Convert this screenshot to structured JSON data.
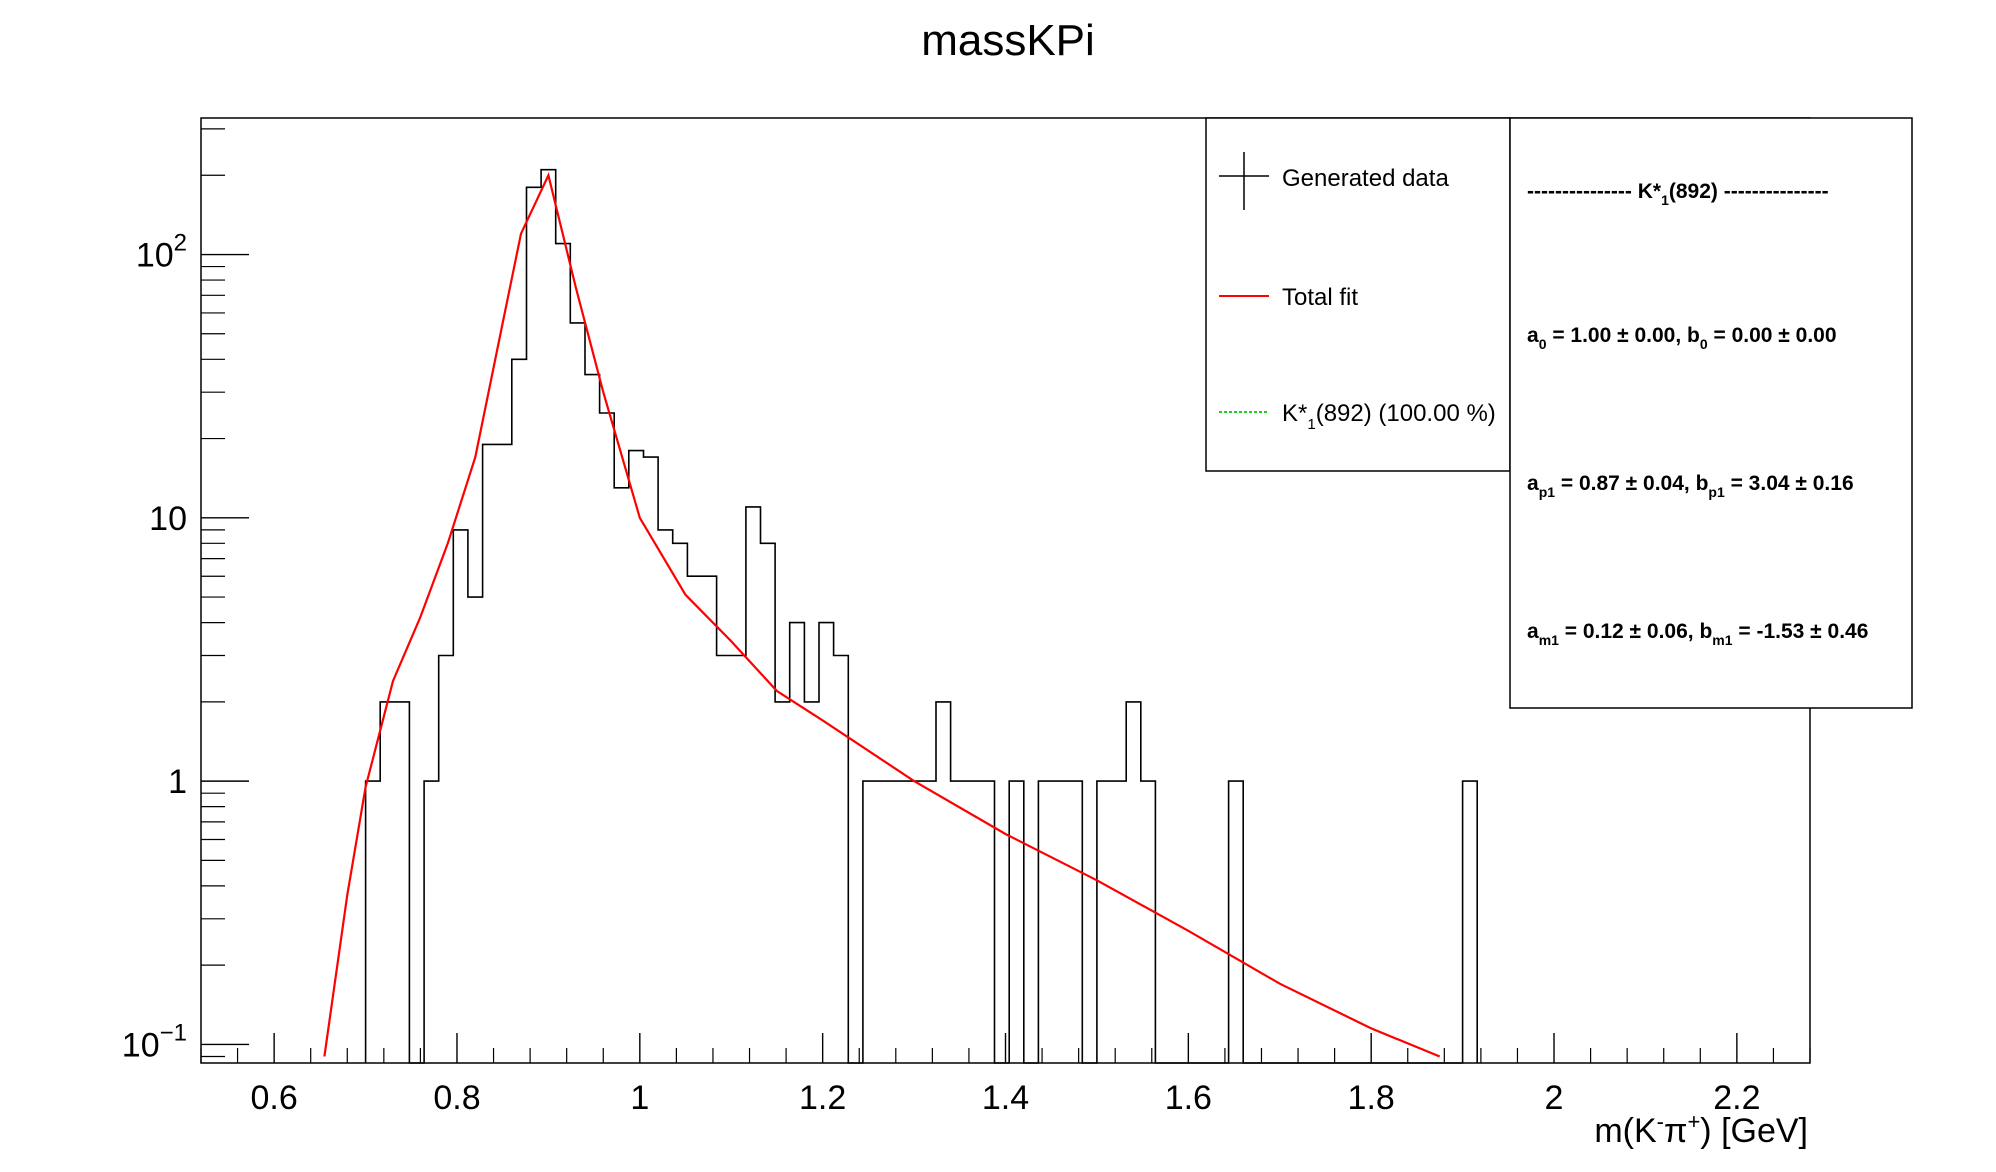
{
  "chart_data": {
    "type": "histogram",
    "title": "massKPi",
    "xlabel": "m(K⁻π⁺) [GeV]",
    "ylabel": "",
    "xlim": [
      0.52,
      2.28
    ],
    "ylim": [
      0.085,
      330
    ],
    "yscale": "log",
    "x_ticks": [
      {
        "value": 0.6,
        "label": "0.6"
      },
      {
        "value": 0.8,
        "label": "0.8"
      },
      {
        "value": 1.0,
        "label": "1"
      },
      {
        "value": 1.2,
        "label": "1.2"
      },
      {
        "value": 1.4,
        "label": "1.4"
      },
      {
        "value": 1.6,
        "label": "1.6"
      },
      {
        "value": 1.8,
        "label": "1.8"
      },
      {
        "value": 2.0,
        "label": "2"
      },
      {
        "value": 2.2,
        "label": "2.2"
      }
    ],
    "y_ticks": [
      {
        "value": 0.1,
        "base": "10",
        "exp": "−1"
      },
      {
        "value": 1,
        "base": "1",
        "exp": ""
      },
      {
        "value": 10,
        "base": "10",
        "exp": ""
      },
      {
        "value": 100,
        "base": "10",
        "exp": "2"
      }
    ],
    "histogram": {
      "name": "Generated data",
      "bin_start": 0.7,
      "bin_width": 0.016,
      "counts": [
        1,
        2,
        2,
        0,
        1,
        3,
        9,
        5,
        19,
        19,
        40,
        180,
        210,
        110,
        55,
        35,
        25,
        13,
        18,
        17,
        9,
        8,
        6,
        6,
        3,
        3,
        11,
        8,
        2,
        4,
        2,
        4,
        3,
        0,
        1,
        1,
        1,
        1,
        1,
        2,
        1,
        1,
        1,
        0,
        1,
        0,
        1,
        1,
        1,
        0,
        1,
        1,
        2,
        1,
        0,
        0,
        0,
        0,
        0,
        1,
        0,
        0,
        0,
        0,
        0,
        0,
        0,
        0,
        0,
        0,
        0,
        0,
        0,
        0,
        0,
        1
      ]
    },
    "fit": {
      "name": "Total fit",
      "color": "#ff0000",
      "x": [
        0.655,
        0.68,
        0.7,
        0.73,
        0.76,
        0.79,
        0.82,
        0.85,
        0.87,
        0.9,
        0.93,
        0.96,
        1.0,
        1.05,
        1.1,
        1.15,
        1.2,
        1.3,
        1.4,
        1.5,
        1.6,
        1.7,
        1.8,
        1.875
      ],
      "y": [
        0.09,
        0.37,
        0.95,
        2.4,
        4.2,
        8.0,
        17.0,
        55,
        120,
        200,
        75,
        30,
        10,
        5.1,
        3.4,
        2.2,
        1.7,
        1.0,
        0.63,
        0.42,
        0.27,
        0.17,
        0.115,
        0.09
      ]
    },
    "component": {
      "name": "K*₁(892) (100.00 %)",
      "label_main": "K*",
      "label_sub": "1",
      "label_rest": "(892) (100.00 %)",
      "color": "#00cc00"
    },
    "legend_placement": "top-right",
    "grid": false
  },
  "legend": {
    "data_label": "Generated data",
    "fit_label": "Total fit",
    "comp_main": "K*",
    "comp_sub": "1",
    "comp_rest": "(892) (100.00 %)"
  },
  "params": {
    "header_left": "--------------- ",
    "header_main": "K*",
    "header_sub": "1",
    "header_rest": "(892) ",
    "header_right": "---------------",
    "line1": {
      "a": "a",
      "a_sub": "0",
      "a_val": " = 1.00 ± 0.00, ",
      "b": "b",
      "b_sub": "0",
      "b_val": " = 0.00 ± 0.00"
    },
    "line2": {
      "a": "a",
      "a_sub": "p1",
      "a_val": " = 0.87 ± 0.04, ",
      "b": "b",
      "b_sub": "p1",
      "b_val": " = 3.04 ± 0.16"
    },
    "line3": {
      "a": "a",
      "a_sub": "m1",
      "a_val": " = 0.12 ± 0.06, ",
      "b": "b",
      "b_sub": "m1",
      "b_val": " = -1.53 ± 0.46"
    }
  },
  "axis_label": {
    "main": "m(K",
    "sup1": "-",
    "mid": "π",
    "sup2": "+",
    "rest": ") [GeV]"
  }
}
